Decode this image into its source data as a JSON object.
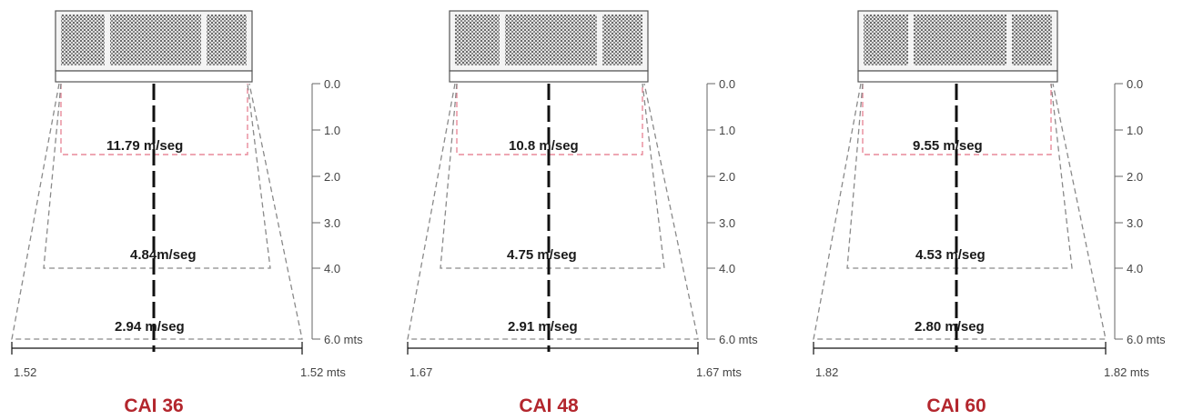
{
  "colors": {
    "accent": "#b3262d",
    "zone_near": "#e88a9a",
    "zone_far": "#8a8a8a",
    "text": "#1a1a1a"
  },
  "units": [
    "CAI 36",
    "CAI 48",
    "CAI 60"
  ],
  "diagrams": [
    {
      "model": "CAI 36",
      "velocities": [
        "11.79 m/seg",
        "4.84m/seg",
        "2.94 m/seg"
      ],
      "distance_ticks": [
        "0.0",
        "1.0",
        "2.0",
        "3.0",
        "4.0",
        "6.0 mts"
      ],
      "width_left": "1.52",
      "width_right": "1.52 mts"
    },
    {
      "model": "CAI 48",
      "velocities": [
        "10.8 m/seg",
        "4.75 m/seg",
        "2.91 m/seg"
      ],
      "distance_ticks": [
        "0.0",
        "1.0",
        "2.0",
        "3.0",
        "4.0",
        "6.0 mts"
      ],
      "width_left": "1.67",
      "width_right": "1.67 mts"
    },
    {
      "model": "CAI 60",
      "velocities": [
        "9.55 m/seg",
        "4.53 m/seg",
        "2.80 m/seg"
      ],
      "distance_ticks": [
        "0.0",
        "1.0",
        "2.0",
        "3.0",
        "4.0",
        "6.0 mts"
      ],
      "width_left": "1.82",
      "width_right": "1.82 mts"
    }
  ]
}
